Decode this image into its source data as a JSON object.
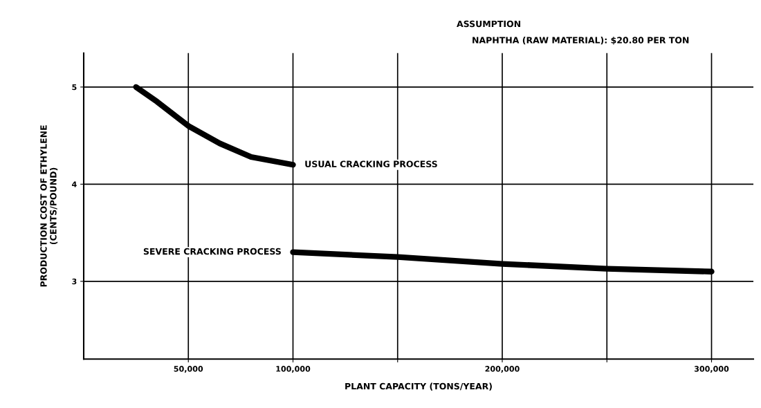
{
  "chart_data": {
    "type": "line",
    "xlabel": "PLANT CAPACITY (TONS/YEAR)",
    "ylabel": "PRODUCTION COST OF ETHYLENE\n(CENTS/POUND)",
    "annotations": [
      "ASSUMPTION",
      "NAPHTHA (RAW MATERIAL): $20.80 PER TON"
    ],
    "series": [
      {
        "name": "USUAL CRACKING PROCESS",
        "color": "#000000",
        "x": [
          25000,
          35000,
          50000,
          65000,
          80000,
          100000
        ],
        "values": [
          5.0,
          4.85,
          4.6,
          4.42,
          4.28,
          4.2
        ]
      },
      {
        "name": "SEVERE CRACKING PROCESS",
        "color": "#000000",
        "x": [
          100000,
          150000,
          200000,
          250000,
          300000
        ],
        "values": [
          3.3,
          3.25,
          3.18,
          3.13,
          3.1
        ]
      }
    ],
    "xlim": [
      0,
      320000
    ],
    "xticks": [
      {
        "value": 50000,
        "label": "50,000"
      },
      {
        "value": 100000,
        "label": "100,000"
      },
      {
        "value": 150000,
        "label": null
      },
      {
        "value": 200000,
        "label": "200,000"
      },
      {
        "value": 250000,
        "label": null
      },
      {
        "value": 300000,
        "label": "300,000"
      }
    ],
    "ylim": [
      2.2,
      5.35
    ],
    "yticks": [
      3,
      4,
      5
    ],
    "grid": true,
    "marker": "none",
    "line_style": "solid"
  }
}
